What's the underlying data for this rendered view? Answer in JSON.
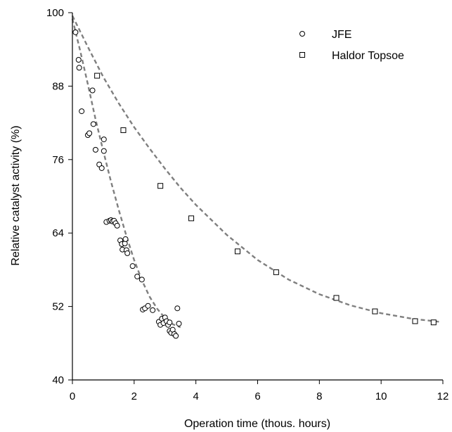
{
  "chart_data": {
    "type": "scatter",
    "title": "",
    "xlabel": "Operation time (thous. hours)",
    "ylabel": "Relative catalyst activity (%)",
    "xlim": [
      0,
      12
    ],
    "ylim": [
      40,
      100
    ],
    "xticks": [
      0,
      2,
      4,
      6,
      8,
      10,
      12
    ],
    "yticks": [
      40,
      52,
      64,
      76,
      88,
      100
    ],
    "grid": false,
    "legend_position": "top-right",
    "series": [
      {
        "name": "JFE",
        "marker": "circle",
        "color": "#000000",
        "points": [
          [
            0.1,
            96.8
          ],
          [
            0.2,
            92.3
          ],
          [
            0.22,
            91.0
          ],
          [
            0.3,
            83.9
          ],
          [
            0.5,
            80.0
          ],
          [
            0.55,
            80.3
          ],
          [
            0.65,
            87.3
          ],
          [
            0.68,
            81.8
          ],
          [
            0.75,
            77.6
          ],
          [
            0.87,
            75.2
          ],
          [
            0.95,
            74.6
          ],
          [
            1.02,
            79.3
          ],
          [
            1.02,
            77.4
          ],
          [
            1.1,
            65.8
          ],
          [
            1.2,
            66.0
          ],
          [
            1.25,
            66.1
          ],
          [
            1.3,
            65.9
          ],
          [
            1.35,
            66.0
          ],
          [
            1.4,
            65.6
          ],
          [
            1.45,
            65.2
          ],
          [
            1.55,
            62.8
          ],
          [
            1.6,
            62.2
          ],
          [
            1.62,
            61.3
          ],
          [
            1.7,
            62.3
          ],
          [
            1.72,
            63.0
          ],
          [
            1.75,
            61.2
          ],
          [
            1.78,
            60.7
          ],
          [
            1.95,
            58.6
          ],
          [
            2.1,
            56.9
          ],
          [
            2.25,
            56.4
          ],
          [
            2.28,
            51.5
          ],
          [
            2.35,
            51.7
          ],
          [
            2.45,
            52.1
          ],
          [
            2.6,
            51.4
          ],
          [
            2.8,
            49.5
          ],
          [
            2.85,
            49.0
          ],
          [
            2.9,
            50.0
          ],
          [
            2.95,
            49.3
          ],
          [
            3.0,
            50.2
          ],
          [
            3.05,
            49.6
          ],
          [
            3.1,
            49.0
          ],
          [
            3.15,
            49.4
          ],
          [
            3.15,
            48.0
          ],
          [
            3.2,
            47.7
          ],
          [
            3.25,
            48.2
          ],
          [
            3.3,
            47.5
          ],
          [
            3.35,
            47.2
          ],
          [
            3.4,
            51.7
          ],
          [
            3.45,
            49.2
          ]
        ]
      },
      {
        "name": "Haldor Topsoe",
        "marker": "square",
        "color": "#000000",
        "points": [
          [
            0.8,
            89.7
          ],
          [
            1.65,
            80.8
          ],
          [
            2.85,
            71.7
          ],
          [
            3.85,
            66.4
          ],
          [
            5.35,
            61.0
          ],
          [
            6.6,
            57.6
          ],
          [
            8.55,
            53.4
          ],
          [
            9.8,
            51.2
          ],
          [
            11.1,
            49.6
          ],
          [
            11.7,
            49.4
          ]
        ]
      }
    ],
    "fits": [
      {
        "name": "JFE fit",
        "style": "dashed",
        "color": "#7f7f7f",
        "points": [
          [
            0,
            99.0
          ],
          [
            0.25,
            93.8
          ],
          [
            0.5,
            88.3
          ],
          [
            0.75,
            82.6
          ],
          [
            1.0,
            77.4
          ],
          [
            1.25,
            72.4
          ],
          [
            1.5,
            67.8
          ],
          [
            1.75,
            63.5
          ],
          [
            2.0,
            59.6
          ],
          [
            2.25,
            56.3
          ],
          [
            2.5,
            53.6
          ],
          [
            2.75,
            51.6
          ],
          [
            3.0,
            50.1
          ],
          [
            3.25,
            49.1
          ],
          [
            3.5,
            48.6
          ]
        ]
      },
      {
        "name": "Haldor Topsoe fit",
        "style": "dashed",
        "color": "#7f7f7f",
        "points": [
          [
            0,
            99.5
          ],
          [
            0.5,
            94.4
          ],
          [
            1.0,
            89.5
          ],
          [
            1.5,
            85.2
          ],
          [
            2.0,
            81.3
          ],
          [
            2.5,
            77.8
          ],
          [
            3.0,
            74.5
          ],
          [
            3.5,
            71.4
          ],
          [
            4.0,
            68.6
          ],
          [
            5.0,
            63.7
          ],
          [
            6.0,
            59.6
          ],
          [
            7.0,
            56.4
          ],
          [
            8.0,
            54.0
          ],
          [
            9.0,
            52.2
          ],
          [
            10.0,
            50.9
          ],
          [
            11.0,
            50.0
          ],
          [
            11.9,
            49.5
          ]
        ]
      }
    ]
  }
}
